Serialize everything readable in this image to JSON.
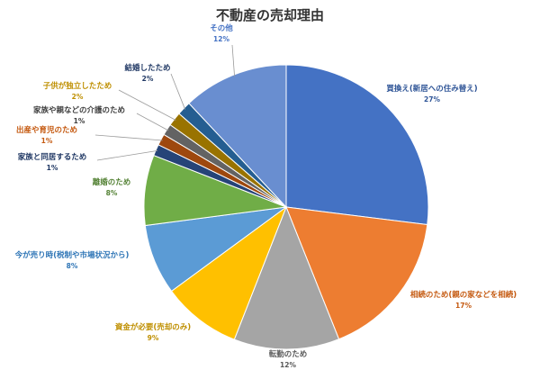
{
  "chart_data": {
    "type": "pie",
    "title": "不動産の売却理由",
    "slices": [
      {
        "name": "買換え(新居への住み替え)",
        "pct_label": "27%",
        "value": 27,
        "color": "#4472C4",
        "label_color": "#2F5597"
      },
      {
        "name": "相続のため(親の家などを相続)",
        "pct_label": "17%",
        "value": 17,
        "color": "#ED7D31",
        "label_color": "#C55A11"
      },
      {
        "name": "転勤のため",
        "pct_label": "12%",
        "value": 12,
        "color": "#A5A5A5",
        "label_color": "#595959"
      },
      {
        "name": "資金が必要(売却のみ)",
        "pct_label": "9%",
        "value": 9,
        "color": "#FFC000",
        "label_color": "#BF8F00"
      },
      {
        "name": "今が売り時(税制や市場状況から)",
        "pct_label": "8%",
        "value": 8,
        "color": "#5B9BD5",
        "label_color": "#2E75B6"
      },
      {
        "name": "離婚のため",
        "pct_label": "8%",
        "value": 8,
        "color": "#70AD47",
        "label_color": "#548235"
      },
      {
        "name": "家族と同居するため",
        "pct_label": "1%",
        "value": 1.3,
        "color": "#264478",
        "label_color": "#203864"
      },
      {
        "name": "出産や育児のため",
        "pct_label": "1%",
        "value": 1.3,
        "color": "#9E480E",
        "label_color": "#C55A11"
      },
      {
        "name": "家族や親などの介護のため",
        "pct_label": "1%",
        "value": 1.3,
        "color": "#636363",
        "label_color": "#404040"
      },
      {
        "name": "子供が独立したため",
        "pct_label": "2%",
        "value": 1.6,
        "color": "#997300",
        "label_color": "#BF8F00"
      },
      {
        "name": "結婚したため",
        "pct_label": "2%",
        "value": 1.6,
        "color": "#255E91",
        "label_color": "#203864"
      },
      {
        "name": "その他",
        "pct_label": "12%",
        "value": 12,
        "color": "#698ED0",
        "label_color": "#4472C4"
      }
    ]
  }
}
